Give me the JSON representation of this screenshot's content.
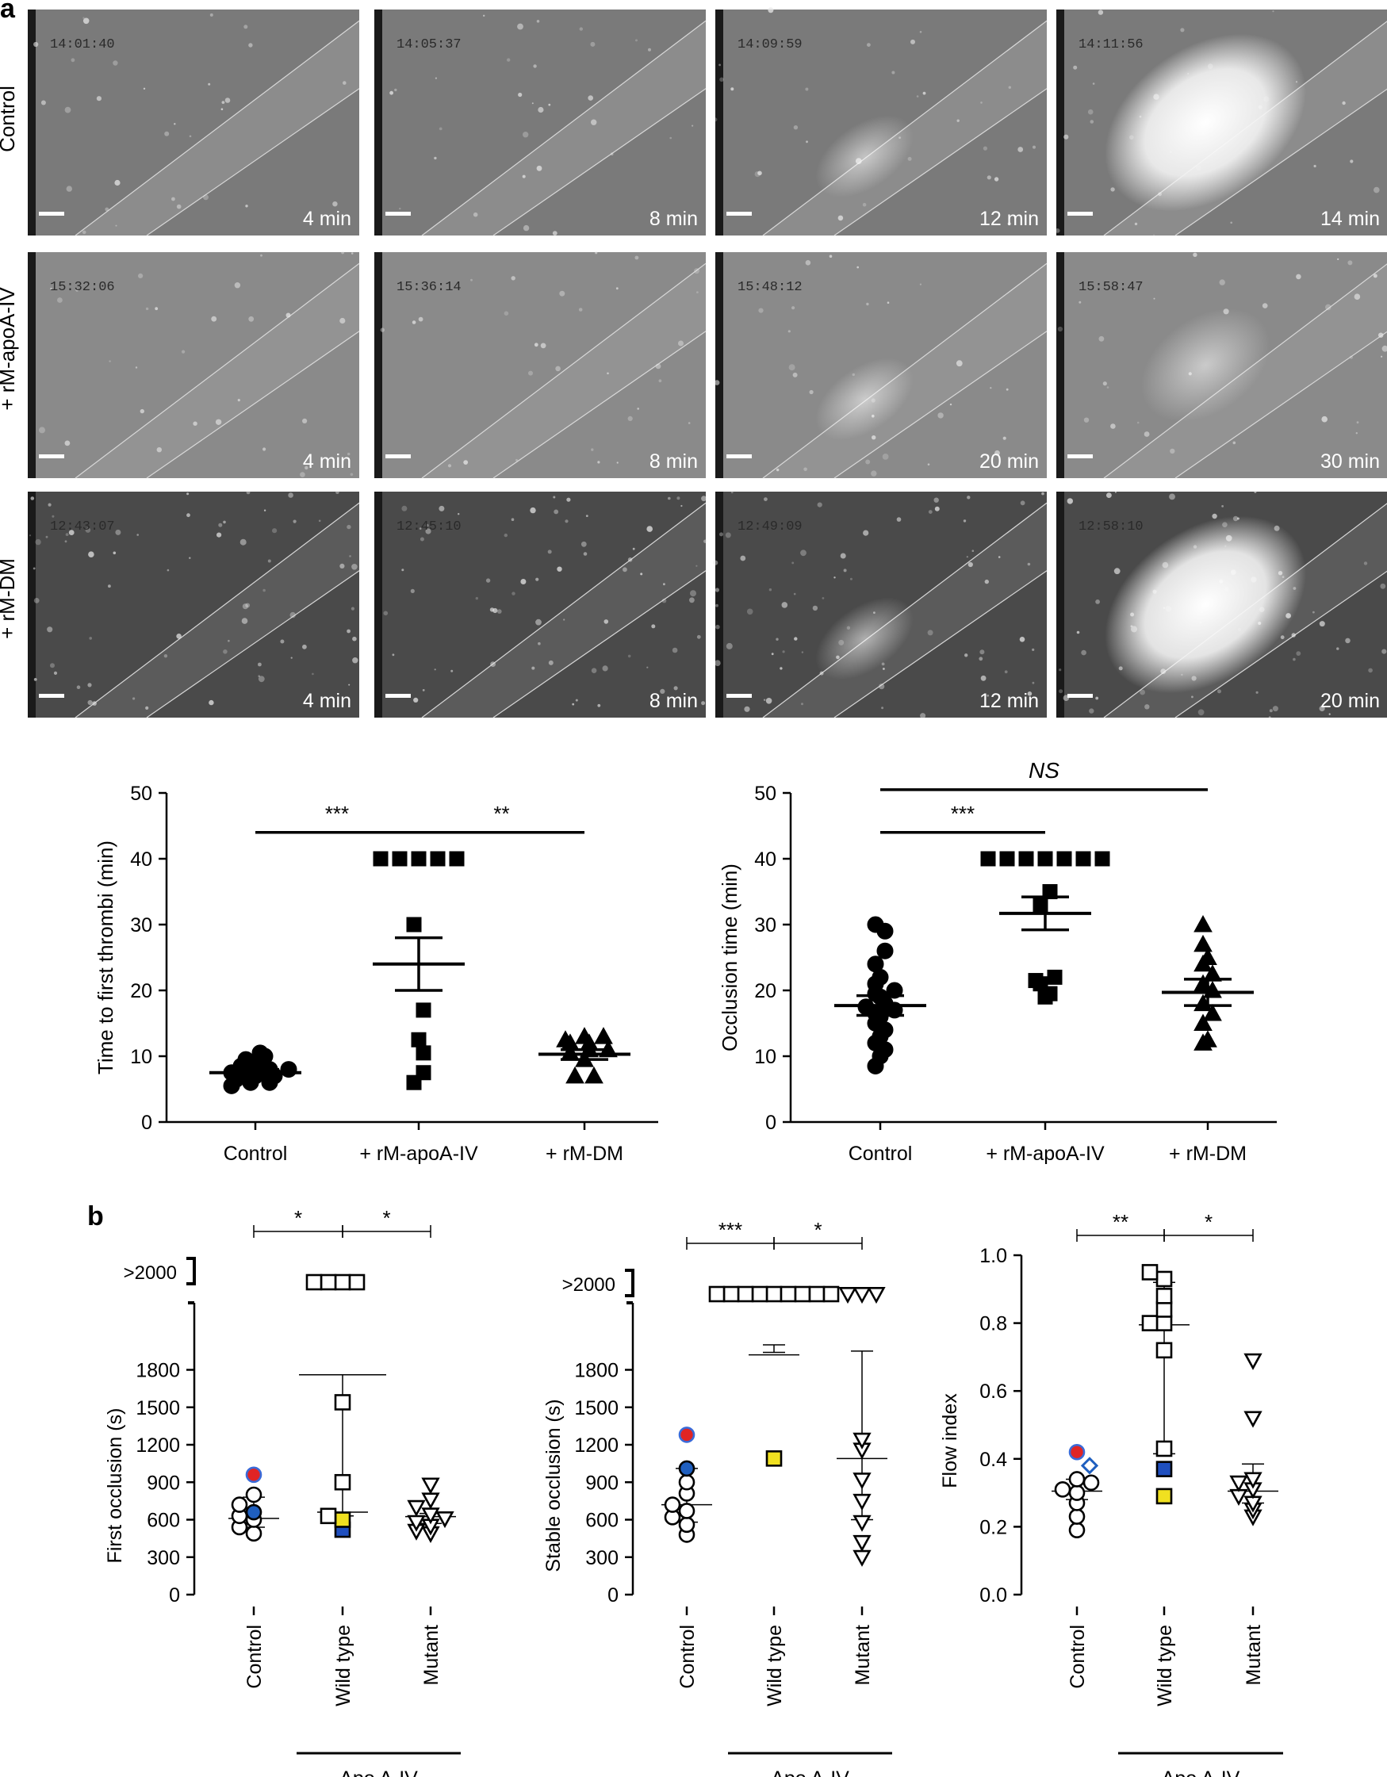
{
  "panel_a": {
    "label": "a",
    "row_labels": [
      "Control",
      "+ rM-apoA-IV",
      "+ rM-DM"
    ],
    "micrographs": [
      [
        {
          "timestamp": "14:01:40",
          "time": "4 min"
        },
        {
          "timestamp": "14:05:37",
          "time": "8 min"
        },
        {
          "timestamp": "14:09:59",
          "time": "12 min"
        },
        {
          "timestamp": "14:11:56",
          "time": "14 min"
        }
      ],
      [
        {
          "timestamp": "15:32:06",
          "time": "4 min"
        },
        {
          "timestamp": "15:36:14",
          "time": "8 min"
        },
        {
          "timestamp": "15:48:12",
          "time": "20 min"
        },
        {
          "timestamp": "15:58:47",
          "time": "30 min"
        }
      ],
      [
        {
          "timestamp": "12:43:07",
          "time": "4 min"
        },
        {
          "timestamp": "12:45:10",
          "time": "8 min"
        },
        {
          "timestamp": "12:49:09",
          "time": "12 min"
        },
        {
          "timestamp": "12:58:10",
          "time": "20 min"
        }
      ]
    ]
  },
  "panel_b": {
    "label": "b",
    "group_label": "Apo A-IV"
  },
  "chart_data": [
    {
      "id": "a-left",
      "type": "scatter",
      "ylabel": "Time to first thrombi (min)",
      "ylim": [
        0,
        50
      ],
      "yticks": [
        "0",
        "10",
        "20",
        "30",
        "40",
        "50"
      ],
      "categories": [
        "Control",
        "+ rM-apoA-IV",
        "+ rM-DM"
      ],
      "series": [
        {
          "marker": "circle",
          "values": [
            5.5,
            6,
            6,
            6.5,
            7,
            7,
            7.5,
            7.5,
            8,
            8,
            8.5,
            9,
            9.5,
            10,
            10.5
          ]
        },
        {
          "marker": "square",
          "values": [
            6,
            7.5,
            10.5,
            12.5,
            17,
            30,
            40,
            40,
            40,
            40,
            40
          ]
        },
        {
          "marker": "triangle",
          "values": [
            7,
            7,
            9.5,
            10.5,
            11,
            11,
            12,
            12,
            12.5,
            13,
            13
          ]
        }
      ],
      "means": [
        7.5,
        24,
        10.3
      ],
      "sem": [
        [
          7,
          8
        ],
        [
          20,
          28
        ],
        [
          9.5,
          11
        ]
      ],
      "significance": [
        {
          "from": 0,
          "to": 1,
          "label": "***",
          "y": 44
        },
        {
          "from": 1,
          "to": 2,
          "label": "**",
          "y": 44
        }
      ]
    },
    {
      "id": "a-right",
      "type": "scatter",
      "ylabel": "Occlusion time (min)",
      "ylim": [
        0,
        50
      ],
      "yticks": [
        "0",
        "10",
        "20",
        "30",
        "40",
        "50"
      ],
      "categories": [
        "Control",
        "+ rM-apoA-IV",
        "+ rM-DM"
      ],
      "series": [
        {
          "marker": "circle",
          "values": [
            8.5,
            10,
            11,
            12,
            13,
            14,
            15,
            16,
            16.5,
            17,
            17.5,
            18,
            19,
            19.5,
            20,
            21,
            22,
            24,
            26,
            29,
            30
          ]
        },
        {
          "marker": "square",
          "values": [
            19,
            19.5,
            21,
            21.5,
            22,
            33,
            35,
            40,
            40,
            40,
            40,
            40,
            40,
            40
          ]
        },
        {
          "marker": "triangle",
          "values": [
            12,
            12.5,
            15,
            16.5,
            18,
            20,
            21,
            22.5,
            24,
            25,
            27,
            30
          ]
        }
      ],
      "means": [
        17.7,
        31.7,
        19.7
      ],
      "sem": [
        [
          16.2,
          19.2
        ],
        [
          29.2,
          34.2
        ],
        [
          17.7,
          21.7
        ]
      ],
      "significance": [
        {
          "from": 0,
          "to": 1,
          "label": "***",
          "y": 44
        },
        {
          "from": 0,
          "to": 2,
          "label": "NS",
          "y": 50.5
        }
      ]
    },
    {
      "id": "b-first",
      "type": "scatter",
      "ylabel": "First occlusion (s)",
      "ylim": [
        0,
        2000
      ],
      "yticks": [
        "0",
        "300",
        "600",
        "900",
        "1200",
        "1500",
        "1800"
      ],
      "break_label": ">2000",
      "categories": [
        "Control",
        "Wild type",
        "Mutant"
      ],
      "series": [
        {
          "marker": "circle",
          "values": [
            490,
            540,
            600,
            630,
            660,
            720,
            800,
            960
          ],
          "highlights": [
            {
              "value": 960,
              "color": "#e02424"
            },
            {
              "value": 660,
              "color": "#1f5fbf"
            }
          ]
        },
        {
          "marker": "square",
          "values": [
            520,
            600,
            630,
            900,
            1540,
            "over",
            "over",
            "over",
            "over"
          ],
          "highlights": [
            {
              "value": 520,
              "color": "#1f4fbf"
            },
            {
              "value": 600,
              "color": "#f0e020"
            }
          ]
        },
        {
          "marker": "triangle",
          "values": [
            490,
            510,
            550,
            580,
            610,
            640,
            700,
            760,
            880
          ]
        }
      ],
      "medians": [
        610,
        660,
        625
      ],
      "ranges": [
        [
          540,
          780
        ],
        [
          630,
          1760
        ],
        [
          570,
          650
        ]
      ],
      "means": [
        null,
        1760,
        null
      ],
      "significance": [
        {
          "from": 0,
          "to": 1,
          "label": "*"
        },
        {
          "from": 1,
          "to": 2,
          "label": "*"
        }
      ]
    },
    {
      "id": "b-stable",
      "type": "scatter",
      "ylabel": "Stable occlusion (s)",
      "ylim": [
        0,
        2000
      ],
      "yticks": [
        "0",
        "300",
        "600",
        "900",
        "1200",
        "1500",
        "1800"
      ],
      "break_label": ">2000",
      "categories": [
        "Control",
        "Wild type",
        "Mutant"
      ],
      "series": [
        {
          "marker": "circle",
          "values": [
            480,
            560,
            620,
            670,
            720,
            810,
            900,
            1010,
            1280
          ],
          "highlights": [
            {
              "value": 1280,
              "color": "#e02424"
            },
            {
              "value": 1010,
              "color": "#1f5fbf"
            }
          ]
        },
        {
          "marker": "square",
          "values": [
            1090,
            "over",
            "over",
            "over",
            "over",
            "over",
            "over",
            "over",
            "over",
            "over"
          ],
          "highlights": [
            {
              "value": 1090,
              "color": "#f0e020"
            }
          ]
        },
        {
          "marker": "triangle",
          "values": [
            300,
            420,
            580,
            750,
            920,
            1160,
            1240,
            "over",
            "over",
            "over"
          ]
        }
      ],
      "medians": [
        720,
        1920,
        1090
      ],
      "ranges": [
        [
          580,
          1010
        ],
        [
          1940,
          2000
        ],
        [
          600,
          1950
        ]
      ],
      "significance": [
        {
          "from": 0,
          "to": 1,
          "label": "***"
        },
        {
          "from": 1,
          "to": 2,
          "label": "*"
        }
      ]
    },
    {
      "id": "b-flow",
      "type": "scatter",
      "ylabel": "Flow index",
      "ylim": [
        0,
        1.0
      ],
      "yticks": [
        "0.0",
        "0.2",
        "0.4",
        "0.6",
        "0.8",
        "1.0"
      ],
      "categories": [
        "Control",
        "Wild type",
        "Mutant"
      ],
      "series": [
        {
          "marker": "circle",
          "values": [
            0.19,
            0.23,
            0.27,
            0.3,
            0.31,
            0.33,
            0.34,
            0.42
          ],
          "highlights": [
            {
              "value": 0.42,
              "color": "#e02424"
            }
          ]
        },
        {
          "marker": "diamond",
          "values": [
            0.38
          ],
          "highlights": [
            {
              "value": 0.38,
              "color": "#1f5fbf"
            }
          ]
        },
        {
          "marker": "square",
          "values": [
            0.29,
            0.37,
            0.43,
            0.72,
            0.8,
            0.8,
            0.84,
            0.88,
            0.93,
            0.95
          ],
          "highlights": [
            {
              "value": 0.37,
              "color": "#1f4fbf"
            },
            {
              "value": 0.29,
              "color": "#f0e020"
            }
          ]
        },
        {
          "marker": "triangle",
          "values": [
            0.23,
            0.25,
            0.27,
            0.29,
            0.31,
            0.33,
            0.34,
            0.52,
            0.69
          ]
        }
      ],
      "medians": [
        0.305,
        0.795,
        0.305
      ],
      "ranges": [
        [
          0.28,
          0.34
        ],
        [
          0.415,
          0.92
        ],
        [
          0.27,
          0.385
        ]
      ],
      "significance": [
        {
          "from": 0,
          "to": 1,
          "label": "**"
        },
        {
          "from": 1,
          "to": 2,
          "label": "*"
        }
      ]
    }
  ]
}
